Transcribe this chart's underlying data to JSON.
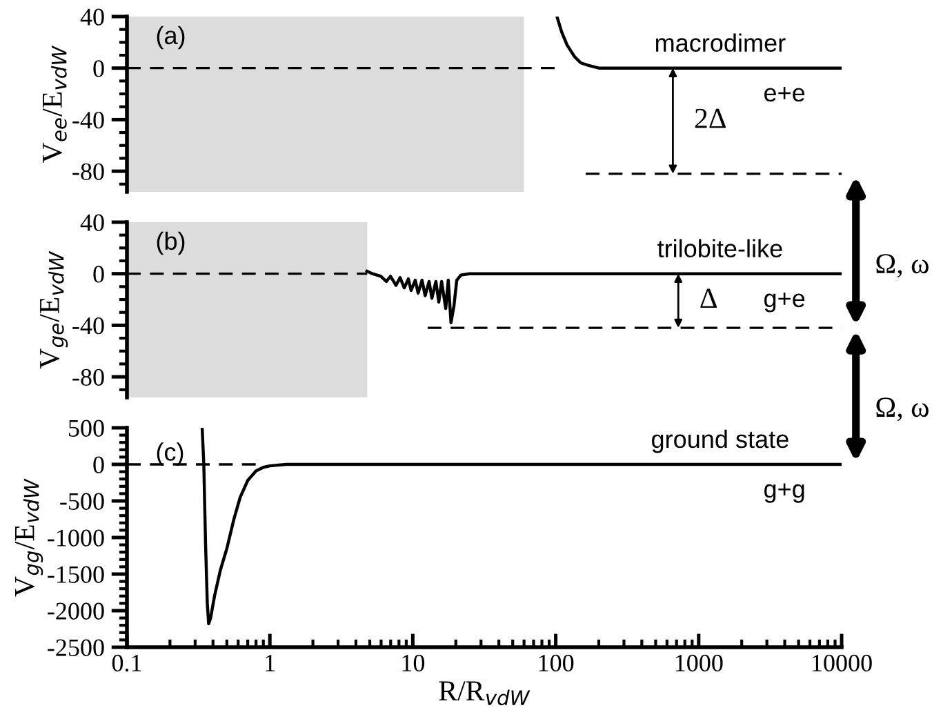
{
  "chart_data": [
    {
      "type": "line",
      "ylabel": "V$_{ee}$/E$_{vdW}$",
      "xlim": [
        0.1,
        10000
      ],
      "ylim": [
        -96,
        40
      ],
      "yticks": [
        40,
        0,
        -40,
        -80
      ],
      "log": "x",
      "tick_labels": "y",
      "bands": [
        {
          "axis": "x",
          "from": 0.1,
          "to": 60,
          "color": "#dcdcdc"
        }
      ],
      "series": [
        {
          "color": "#000000",
          "line_style": "solid",
          "x": [
            102,
            110,
            120,
            135,
            150,
            170,
            200,
            250,
            400,
            1000,
            10000
          ],
          "values": [
            40,
            28,
            18,
            9,
            4,
            2,
            0,
            0,
            0,
            0,
            0
          ]
        },
        {
          "color": "#000000",
          "line_style": "dashed",
          "x": [
            0.1,
            100
          ],
          "values": [
            0,
            0
          ]
        },
        {
          "color": "#000000",
          "line_style": "dashed",
          "x": [
            162,
            10000
          ],
          "values": [
            -82,
            -82
          ]
        }
      ],
      "annotations": [
        "(a)",
        "Ω, ω",
        "macrodimer",
        "e+e",
        {
          "text": "2Δ",
          "x": 660,
          "y": -82
        }
      ]
    },
    {
      "type": "line",
      "ylabel": "V$_{ge}$/E$_{vdW}$",
      "xlim": [
        0.1,
        10000
      ],
      "ylim": [
        -96,
        40
      ],
      "yticks": [
        40,
        0,
        -40,
        -80
      ],
      "log": "x",
      "tick_labels": "y",
      "bands": [
        {
          "axis": "x",
          "from": 0.1,
          "to": 4.8,
          "color": "#dcdcdc"
        }
      ],
      "series": [
        {
          "color": "#000000",
          "line_style": "solid",
          "x": [
            4.78,
            5.22,
            5.97,
            6.53,
            6.98,
            7.63,
            8.15,
            8.71,
            9.31,
            9.73,
            10.4,
            10.9,
            11.6,
            12.2,
            13.0,
            13.6,
            14.5,
            15.2,
            15.9,
            17.0,
            17.7,
            18.5,
            19.4,
            20.3,
            21.7,
            24.8,
            10000
          ],
          "values": [
            2,
            0,
            -2,
            -6,
            -2,
            -9,
            -3,
            -11,
            -4,
            -13,
            -5,
            -15,
            -5,
            -17,
            -6,
            -19,
            -6,
            -22,
            -6,
            -27,
            -5,
            -38,
            -25,
            -5,
            -1,
            0,
            0
          ]
        },
        {
          "color": "#000000",
          "line_style": "dashed",
          "x": [
            0.1,
            4.8
          ],
          "values": [
            0,
            0
          ]
        },
        {
          "color": "#000000",
          "line_style": "dashed",
          "x": [
            12.7,
            10000
          ],
          "values": [
            -42,
            -42
          ]
        }
      ],
      "annotations": [
        "(b)",
        "Ω, ω",
        "trilobite-like",
        "g+e",
        {
          "text": "Δ",
          "x": 720,
          "y": -42
        }
      ]
    },
    {
      "type": "line",
      "ylabel": "V$_{gg}$/E$_{vdW}$",
      "xlabel": "R/R$_{vdW}$",
      "xlim": [
        0.1,
        10000
      ],
      "xticks": [
        0.1,
        1,
        10,
        100,
        1000,
        10000
      ],
      "ylim": [
        -2500,
        500
      ],
      "yticks": [
        500,
        0,
        -500,
        -1000,
        -1500,
        -2000,
        -2500
      ],
      "log": "x",
      "series": [
        {
          "color": "#000000",
          "line_style": "solid",
          "x": [
            0.336,
            0.345,
            0.355,
            0.365,
            0.373,
            0.385,
            0.41,
            0.45,
            0.5,
            0.56,
            0.62,
            0.7,
            0.8,
            0.9,
            1.0,
            1.3,
            2,
            10000
          ],
          "values": [
            500,
            0,
            -1100,
            -1900,
            -2180,
            -2100,
            -1800,
            -1450,
            -1150,
            -750,
            -450,
            -220,
            -90,
            -40,
            -20,
            0,
            0,
            0
          ]
        },
        {
          "color": "#000000",
          "line_style": "dashed",
          "x": [
            0.1,
            0.9
          ],
          "values": [
            0,
            0
          ]
        }
      ],
      "annotations": [
        "(c)",
        "ground state",
        "g+g"
      ]
    }
  ]
}
